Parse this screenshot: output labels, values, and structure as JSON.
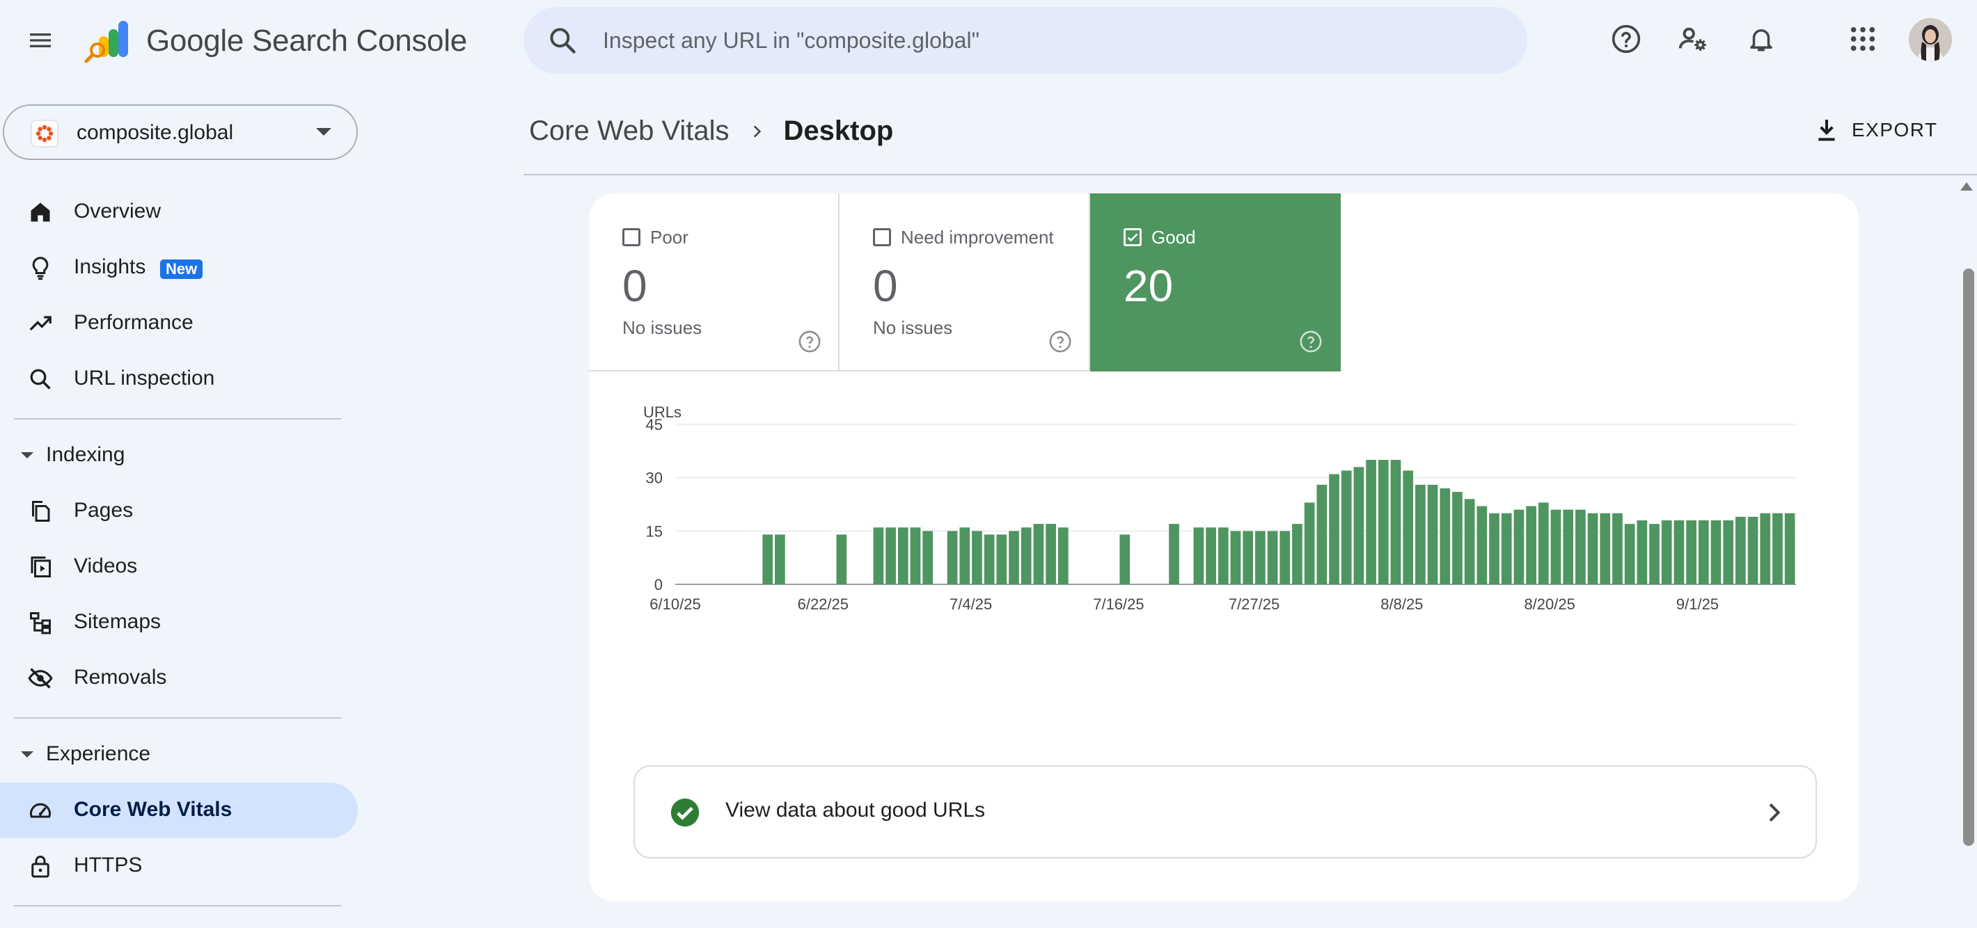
{
  "app": {
    "title": "Google Search Console",
    "search_placeholder": "Inspect any URL in \"composite.global\""
  },
  "topbar": {
    "icons": [
      "menu-icon",
      "help-icon",
      "manage-users-icon",
      "notifications-icon",
      "apps-grid-icon",
      "account-avatar"
    ]
  },
  "property": {
    "name": "composite.global"
  },
  "sidebar": {
    "top_items": [
      {
        "label": "Overview",
        "icon": "home-icon"
      },
      {
        "label": "Insights",
        "icon": "lightbulb-icon",
        "badge": "New"
      },
      {
        "label": "Performance",
        "icon": "trending-up-icon"
      },
      {
        "label": "URL inspection",
        "icon": "search-icon"
      }
    ],
    "indexing": {
      "heading": "Indexing",
      "items": [
        {
          "label": "Pages",
          "icon": "pages-icon"
        },
        {
          "label": "Videos",
          "icon": "videos-icon"
        },
        {
          "label": "Sitemaps",
          "icon": "sitemaps-icon"
        },
        {
          "label": "Removals",
          "icon": "removals-icon"
        }
      ]
    },
    "experience": {
      "heading": "Experience",
      "items": [
        {
          "label": "Core Web Vitals",
          "icon": "speedometer-icon",
          "active": true
        },
        {
          "label": "HTTPS",
          "icon": "lock-icon"
        }
      ]
    }
  },
  "header": {
    "breadcrumb_parent": "Core Web Vitals",
    "breadcrumb_current": "Desktop",
    "export_label": "EXPORT"
  },
  "tiles": [
    {
      "label": "Poor",
      "count": "0",
      "sub": "No issues",
      "checked": false
    },
    {
      "label": "Need improvement",
      "count": "0",
      "sub": "No issues",
      "checked": false
    },
    {
      "label": "Good",
      "count": "20",
      "sub": "",
      "checked": true
    }
  ],
  "colors": {
    "good": "#4f9560",
    "accent": "#1a73e8",
    "active_nav": "#d3e3fd"
  },
  "footer": {
    "label": "View data about good URLs"
  },
  "chart_data": {
    "type": "bar",
    "title": "",
    "ylabel": "URLs",
    "xlabel": "",
    "ylim": [
      0,
      45
    ],
    "yticks": [
      0,
      15,
      30,
      45
    ],
    "xticks": [
      {
        "label": "6/10/25",
        "index": 0
      },
      {
        "label": "6/22/25",
        "index": 12
      },
      {
        "label": "7/4/25",
        "index": 24
      },
      {
        "label": "7/16/25",
        "index": 36
      },
      {
        "label": "7/27/25",
        "index": 47
      },
      {
        "label": "8/8/25",
        "index": 59
      },
      {
        "label": "8/20/25",
        "index": 71
      },
      {
        "label": "9/1/25",
        "index": 83
      }
    ],
    "start_date": "6/10/25",
    "end_date": "9/8/25",
    "series": [
      {
        "name": "Good",
        "color": "#4f9560",
        "values": [
          0,
          0,
          0,
          0,
          0,
          0,
          0,
          14,
          14,
          0,
          0,
          0,
          0,
          14,
          0,
          0,
          16,
          16,
          16,
          16,
          15,
          0,
          15,
          16,
          15,
          14,
          14,
          15,
          16,
          17,
          17,
          16,
          0,
          0,
          0,
          0,
          14,
          0,
          0,
          0,
          17,
          0,
          16,
          16,
          16,
          15,
          15,
          15,
          15,
          15,
          17,
          23,
          28,
          31,
          32,
          33,
          35,
          35,
          35,
          32,
          28,
          28,
          27,
          26,
          24,
          22,
          20,
          20,
          21,
          22,
          23,
          21,
          21,
          21,
          20,
          20,
          20,
          17,
          18,
          17,
          18,
          18,
          18,
          18,
          18,
          18,
          19,
          19,
          20,
          20,
          20
        ]
      }
    ]
  }
}
